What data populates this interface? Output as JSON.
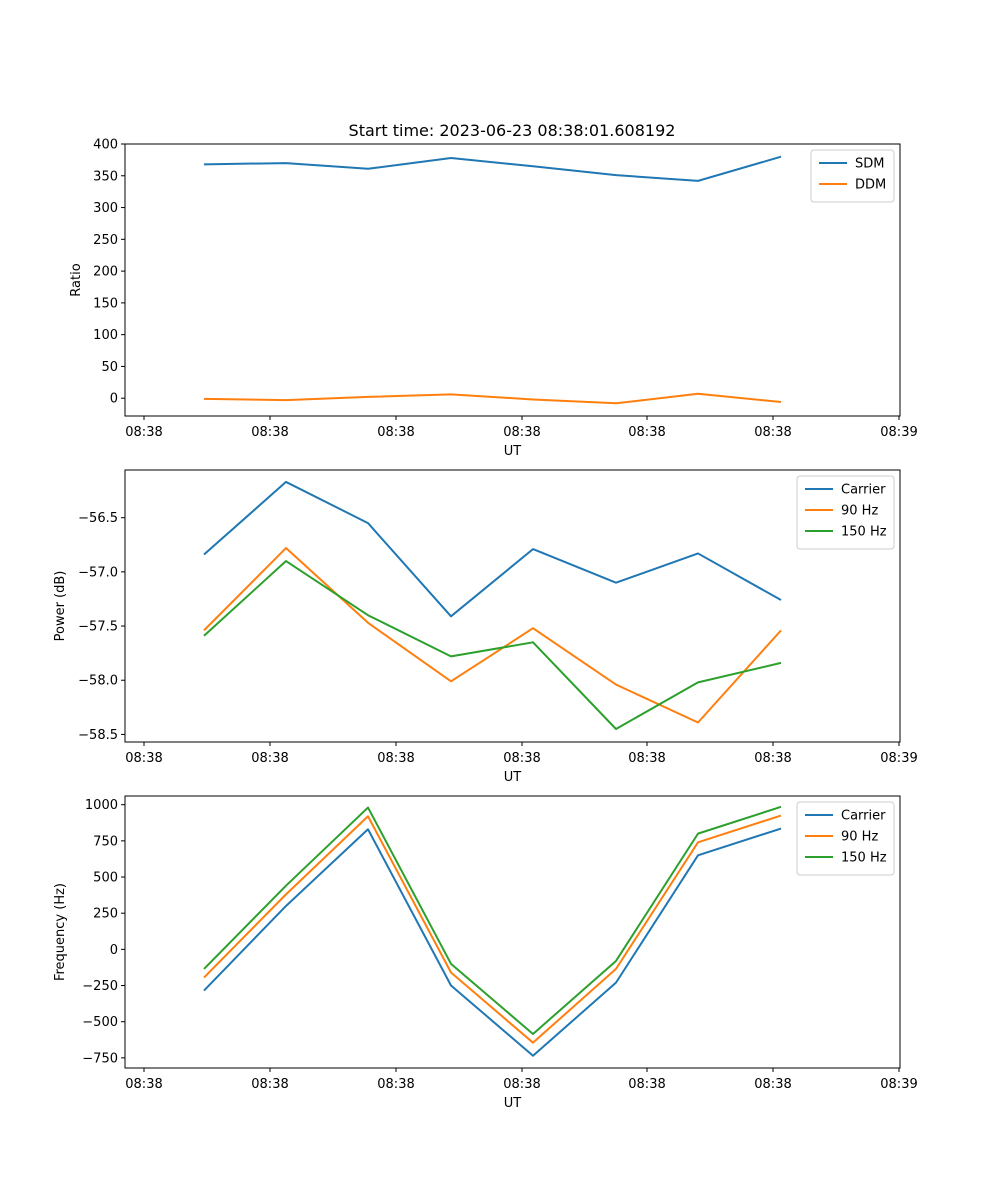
{
  "title": "Start time: 2023-06-23 08:38:01.608192",
  "chart_data": [
    {
      "type": "line",
      "xlabel": "UT",
      "ylabel": "Ratio",
      "x_tick_labels": [
        "08:38",
        "08:38",
        "08:38",
        "08:38",
        "08:38",
        "08:38",
        "08:39"
      ],
      "x_points": 8,
      "ylim": [
        -28,
        400
      ],
      "yticks": [
        0,
        50,
        100,
        150,
        200,
        250,
        300,
        350,
        400
      ],
      "legend_loc": "upper right",
      "series": [
        {
          "name": "SDM",
          "color": "#1f77b4",
          "values": [
            368,
            370,
            361,
            378,
            365,
            351,
            342,
            380
          ]
        },
        {
          "name": "DDM",
          "color": "#ff7f0e",
          "values": [
            -1,
            -3,
            2,
            6,
            -2,
            -8,
            7,
            -6
          ]
        }
      ]
    },
    {
      "type": "line",
      "xlabel": "UT",
      "ylabel": "Power (dB)",
      "x_tick_labels": [
        "08:38",
        "08:38",
        "08:38",
        "08:38",
        "08:38",
        "08:38",
        "08:39"
      ],
      "x_points": 8,
      "ylim": [
        -58.57,
        -56.06
      ],
      "yticks": [
        -58.5,
        -58.0,
        -57.5,
        -57.0,
        -56.5
      ],
      "ytick_labels": [
        "−58.5",
        "−58.0",
        "−57.5",
        "−57.0",
        "−56.5"
      ],
      "legend_loc": "upper right",
      "series": [
        {
          "name": "Carrier",
          "color": "#1f77b4",
          "values": [
            -56.84,
            -56.17,
            -56.55,
            -57.41,
            -56.79,
            -57.1,
            -56.83,
            -57.26
          ]
        },
        {
          "name": "90 Hz",
          "color": "#ff7f0e",
          "values": [
            -57.54,
            -56.78,
            -57.47,
            -58.01,
            -57.52,
            -58.04,
            -58.39,
            -57.54
          ]
        },
        {
          "name": "150 Hz",
          "color": "#2ca02c",
          "values": [
            -57.59,
            -56.9,
            -57.4,
            -57.78,
            -57.65,
            -58.45,
            -58.02,
            -57.84
          ]
        }
      ]
    },
    {
      "type": "line",
      "xlabel": "UT",
      "ylabel": "Frequency (Hz)",
      "x_tick_labels": [
        "08:38",
        "08:38",
        "08:38",
        "08:38",
        "08:38",
        "08:38",
        "08:39"
      ],
      "x_points": 8,
      "ylim": [
        -820,
        1060
      ],
      "yticks": [
        -750,
        -500,
        -250,
        0,
        250,
        500,
        750,
        1000
      ],
      "ytick_labels": [
        "−750",
        "−500",
        "−250",
        "0",
        "250",
        "500",
        "750",
        "1000"
      ],
      "legend_loc": "upper right",
      "series": [
        {
          "name": "Carrier",
          "color": "#1f77b4",
          "values": [
            -285,
            300,
            830,
            -250,
            -735,
            -230,
            650,
            835
          ]
        },
        {
          "name": "90 Hz",
          "color": "#ff7f0e",
          "values": [
            -195,
            380,
            920,
            -160,
            -645,
            -135,
            740,
            925
          ]
        },
        {
          "name": "150 Hz",
          "color": "#2ca02c",
          "values": [
            -135,
            440,
            980,
            -100,
            -585,
            -80,
            800,
            985
          ]
        }
      ]
    }
  ]
}
